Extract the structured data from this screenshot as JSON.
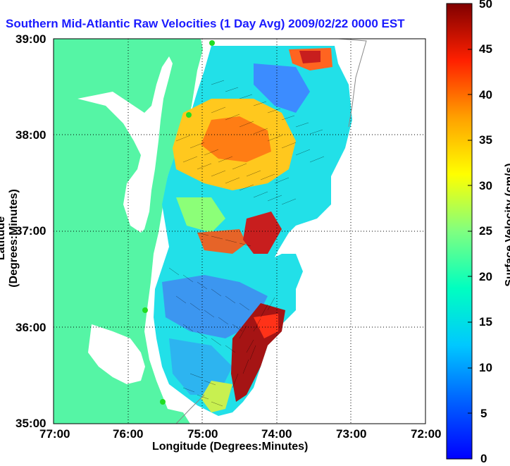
{
  "title": "Southern Mid-Atlantic Raw Velocities (1 Day Avg) 2009/02/22 0000 EST",
  "xlabel": "Longitude (Degrees:Minutes)",
  "ylabel": "Latitude (Degrees:Minutes)",
  "colorbar_label": "Surface Velocity (cm/s)",
  "x_ticks": [
    "77:00",
    "76:00",
    "75:00",
    "74:00",
    "73:00",
    "72:00"
  ],
  "y_ticks": [
    "39:00",
    "38:00",
    "37:00",
    "36:00",
    "35:00"
  ],
  "colorbar_ticks": [
    "50",
    "45",
    "40",
    "35",
    "30",
    "25",
    "20",
    "15",
    "10",
    "5",
    "0"
  ],
  "colors": {
    "land": "#55f5a5",
    "title": "#1a1aff",
    "grid": "#000000",
    "station": "#22dd22"
  },
  "chart_data": {
    "type": "heatmap",
    "title": "Southern Mid-Atlantic Raw Velocities (1 Day Avg) 2009/02/22 0000 EST",
    "xlabel": "Longitude (Degrees:Minutes)",
    "ylabel": "Latitude (Degrees:Minutes)",
    "xlim": [
      -77,
      -72
    ],
    "ylim": [
      35,
      39
    ],
    "clim": [
      0,
      50
    ],
    "colormap": "jet",
    "grid": true
  }
}
